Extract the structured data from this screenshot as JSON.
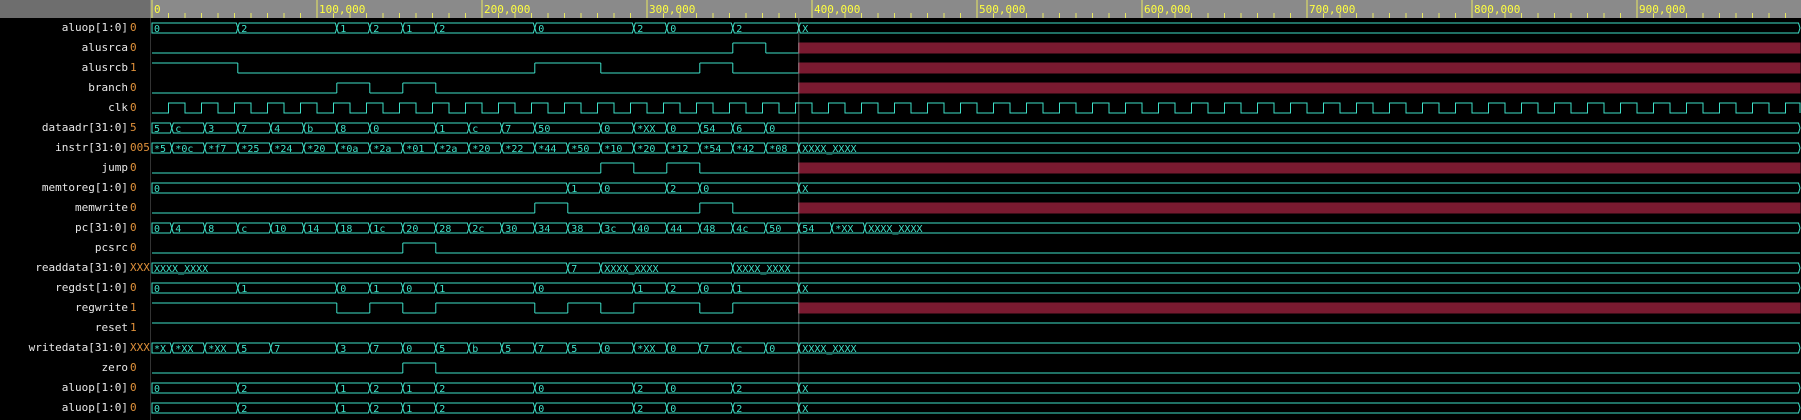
{
  "timeline": {
    "tick_labels": [
      "0",
      "100,000",
      "200,000",
      "300,000",
      "400,000",
      "500,000",
      "600,000",
      "700,000",
      "800,000",
      "900,000"
    ],
    "max_time": 1000000,
    "cursor_time": 392000,
    "unknown_start_time": 392000,
    "clock_period": 20000
  },
  "colors": {
    "ruler_bg": "#8a8a8a",
    "ruler_text": "#ffff40",
    "wave": "#3ee0c8",
    "x_fill": "#7a1a30",
    "value": "#e0913a",
    "name": "#e8e8e8"
  },
  "signals": [
    {
      "name": "aluop[1:0]",
      "value": "0",
      "kind": "bus",
      "transitions": [
        [
          0,
          "0"
        ],
        [
          52000,
          "2"
        ],
        [
          112000,
          "1"
        ],
        [
          132000,
          "2"
        ],
        [
          152000,
          "1"
        ],
        [
          172000,
          "2"
        ],
        [
          232000,
          "0"
        ],
        [
          292000,
          "2"
        ],
        [
          312000,
          "0"
        ],
        [
          352000,
          "2"
        ],
        [
          392000,
          "X"
        ]
      ]
    },
    {
      "name": "alusrca",
      "value": "0",
      "kind": "bit",
      "transitions": [
        [
          0,
          0
        ],
        [
          352000,
          1
        ],
        [
          372000,
          0
        ],
        [
          392000,
          "X"
        ]
      ]
    },
    {
      "name": "alusrcb",
      "value": "1",
      "kind": "bit",
      "transitions": [
        [
          0,
          1
        ],
        [
          52000,
          0
        ],
        [
          232000,
          1
        ],
        [
          272000,
          0
        ],
        [
          332000,
          1
        ],
        [
          352000,
          0
        ],
        [
          392000,
          "X"
        ]
      ]
    },
    {
      "name": "branch",
      "value": "0",
      "kind": "bit",
      "transitions": [
        [
          0,
          0
        ],
        [
          112000,
          1
        ],
        [
          132000,
          0
        ],
        [
          152000,
          1
        ],
        [
          172000,
          0
        ],
        [
          392000,
          "X"
        ]
      ]
    },
    {
      "name": "clk",
      "value": "0",
      "kind": "clk",
      "transitions": []
    },
    {
      "name": "dataadr[31:0]",
      "value": "5",
      "kind": "bus",
      "transitions": [
        [
          0,
          "5"
        ],
        [
          12000,
          "c"
        ],
        [
          32000,
          "3"
        ],
        [
          52000,
          "7"
        ],
        [
          72000,
          "4"
        ],
        [
          92000,
          "b"
        ],
        [
          112000,
          "8"
        ],
        [
          132000,
          "0"
        ],
        [
          172000,
          "1"
        ],
        [
          192000,
          "c"
        ],
        [
          212000,
          "7"
        ],
        [
          232000,
          "50"
        ],
        [
          272000,
          "0"
        ],
        [
          292000,
          "*XX"
        ],
        [
          312000,
          "0"
        ],
        [
          332000,
          "54"
        ],
        [
          352000,
          "6"
        ],
        [
          372000,
          "0"
        ]
      ]
    },
    {
      "name": "instr[31:0]",
      "value": "005",
      "kind": "bus",
      "transitions": [
        [
          0,
          "*5"
        ],
        [
          12000,
          "*0c"
        ],
        [
          32000,
          "*f7"
        ],
        [
          52000,
          "*25"
        ],
        [
          72000,
          "*24"
        ],
        [
          92000,
          "*20"
        ],
        [
          112000,
          "*0a"
        ],
        [
          132000,
          "*2a"
        ],
        [
          152000,
          "*01"
        ],
        [
          172000,
          "*2a"
        ],
        [
          192000,
          "*20"
        ],
        [
          212000,
          "*22"
        ],
        [
          232000,
          "*44"
        ],
        [
          252000,
          "*50"
        ],
        [
          272000,
          "*10"
        ],
        [
          292000,
          "*20"
        ],
        [
          312000,
          "*12"
        ],
        [
          332000,
          "*54"
        ],
        [
          352000,
          "*42"
        ],
        [
          372000,
          "*08"
        ],
        [
          392000,
          "XXXX_XXXX"
        ]
      ]
    },
    {
      "name": "jump",
      "value": "0",
      "kind": "bit",
      "transitions": [
        [
          0,
          0
        ],
        [
          272000,
          1
        ],
        [
          292000,
          0
        ],
        [
          312000,
          1
        ],
        [
          332000,
          0
        ],
        [
          392000,
          "X"
        ]
      ]
    },
    {
      "name": "memtoreg[1:0]",
      "value": "0",
      "kind": "bus",
      "transitions": [
        [
          0,
          "0"
        ],
        [
          252000,
          "1"
        ],
        [
          272000,
          "0"
        ],
        [
          312000,
          "2"
        ],
        [
          332000,
          "0"
        ],
        [
          392000,
          "X"
        ]
      ]
    },
    {
      "name": "memwrite",
      "value": "0",
      "kind": "bit",
      "transitions": [
        [
          0,
          0
        ],
        [
          232000,
          1
        ],
        [
          252000,
          0
        ],
        [
          332000,
          1
        ],
        [
          352000,
          0
        ],
        [
          392000,
          "X"
        ]
      ]
    },
    {
      "name": "pc[31:0]",
      "value": "0",
      "kind": "bus",
      "transitions": [
        [
          0,
          "0"
        ],
        [
          12000,
          "4"
        ],
        [
          32000,
          "8"
        ],
        [
          52000,
          "c"
        ],
        [
          72000,
          "10"
        ],
        [
          92000,
          "14"
        ],
        [
          112000,
          "18"
        ],
        [
          132000,
          "1c"
        ],
        [
          152000,
          "20"
        ],
        [
          172000,
          "28"
        ],
        [
          192000,
          "2c"
        ],
        [
          212000,
          "30"
        ],
        [
          232000,
          "34"
        ],
        [
          252000,
          "38"
        ],
        [
          272000,
          "3c"
        ],
        [
          292000,
          "40"
        ],
        [
          312000,
          "44"
        ],
        [
          332000,
          "48"
        ],
        [
          352000,
          "4c"
        ],
        [
          372000,
          "50"
        ],
        [
          392000,
          "54"
        ],
        [
          412000,
          "*XX"
        ],
        [
          432000,
          "XXXX_XXXX"
        ]
      ]
    },
    {
      "name": "pcsrc",
      "value": "0",
      "kind": "bit",
      "transitions": [
        [
          0,
          0
        ],
        [
          152000,
          1
        ],
        [
          172000,
          0
        ]
      ]
    },
    {
      "name": "readdata[31:0]",
      "value": "XXX",
      "kind": "bus",
      "transitions": [
        [
          0,
          "XXXX_XXXX"
        ],
        [
          252000,
          "7"
        ],
        [
          272000,
          "XXXX_XXXX"
        ],
        [
          352000,
          "XXXX_XXXX"
        ]
      ]
    },
    {
      "name": "regdst[1:0]",
      "value": "0",
      "kind": "bus",
      "transitions": [
        [
          0,
          "0"
        ],
        [
          52000,
          "1"
        ],
        [
          112000,
          "0"
        ],
        [
          132000,
          "1"
        ],
        [
          152000,
          "0"
        ],
        [
          172000,
          "1"
        ],
        [
          232000,
          "0"
        ],
        [
          292000,
          "1"
        ],
        [
          312000,
          "2"
        ],
        [
          332000,
          "0"
        ],
        [
          352000,
          "1"
        ],
        [
          392000,
          "X"
        ]
      ]
    },
    {
      "name": "regwrite",
      "value": "1",
      "kind": "bit",
      "transitions": [
        [
          0,
          1
        ],
        [
          112000,
          0
        ],
        [
          132000,
          1
        ],
        [
          152000,
          0
        ],
        [
          172000,
          1
        ],
        [
          232000,
          0
        ],
        [
          252000,
          1
        ],
        [
          272000,
          0
        ],
        [
          292000,
          1
        ],
        [
          332000,
          0
        ],
        [
          352000,
          1
        ],
        [
          392000,
          "X"
        ]
      ]
    },
    {
      "name": "reset",
      "value": "1",
      "kind": "bit",
      "transitions": [
        [
          0,
          1
        ]
      ]
    },
    {
      "name": "writedata[31:0]",
      "value": "XXX",
      "kind": "bus",
      "transitions": [
        [
          0,
          "*X"
        ],
        [
          12000,
          "*XX"
        ],
        [
          32000,
          "*XX"
        ],
        [
          52000,
          "5"
        ],
        [
          72000,
          "7"
        ],
        [
          112000,
          "3"
        ],
        [
          132000,
          "7"
        ],
        [
          152000,
          "0"
        ],
        [
          172000,
          "5"
        ],
        [
          192000,
          "b"
        ],
        [
          212000,
          "5"
        ],
        [
          232000,
          "7"
        ],
        [
          252000,
          "5"
        ],
        [
          272000,
          "0"
        ],
        [
          292000,
          "*XX"
        ],
        [
          312000,
          "0"
        ],
        [
          332000,
          "7"
        ],
        [
          352000,
          "c"
        ],
        [
          372000,
          "0"
        ],
        [
          392000,
          "XXXX_XXXX"
        ]
      ]
    },
    {
      "name": "zero",
      "value": "0",
      "kind": "bit",
      "transitions": [
        [
          0,
          0
        ],
        [
          152000,
          1
        ],
        [
          172000,
          0
        ]
      ]
    },
    {
      "name": "aluop[1:0]",
      "value": "0",
      "kind": "bus",
      "transitions": [
        [
          0,
          "0"
        ],
        [
          52000,
          "2"
        ],
        [
          112000,
          "1"
        ],
        [
          132000,
          "2"
        ],
        [
          152000,
          "1"
        ],
        [
          172000,
          "2"
        ],
        [
          232000,
          "0"
        ],
        [
          292000,
          "2"
        ],
        [
          312000,
          "0"
        ],
        [
          352000,
          "2"
        ],
        [
          392000,
          "X"
        ]
      ]
    },
    {
      "name": "aluop[1:0]",
      "value": "0",
      "kind": "bus",
      "transitions": [
        [
          0,
          "0"
        ],
        [
          52000,
          "2"
        ],
        [
          112000,
          "1"
        ],
        [
          132000,
          "2"
        ],
        [
          152000,
          "1"
        ],
        [
          172000,
          "2"
        ],
        [
          232000,
          "0"
        ],
        [
          292000,
          "2"
        ],
        [
          312000,
          "0"
        ],
        [
          352000,
          "2"
        ],
        [
          392000,
          "X"
        ]
      ]
    }
  ]
}
